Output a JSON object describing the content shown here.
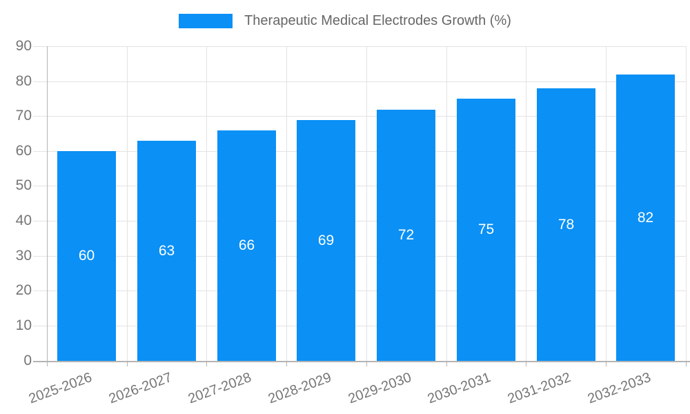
{
  "chart_data": {
    "type": "bar",
    "title": "Therapeutic Medical Electrodes Growth (%)",
    "categories": [
      "2025-2026",
      "2026-2027",
      "2027-2028",
      "2028-2029",
      "2029-2030",
      "2030-2031",
      "2031-2032",
      "2032-2033"
    ],
    "series": [
      {
        "name": "Therapeutic Medical Electrodes Growth (%)",
        "values": [
          60,
          63,
          66,
          69,
          72,
          75,
          78,
          82
        ]
      }
    ],
    "value_labels": [
      "60",
      "63",
      "66",
      "69",
      "72",
      "75",
      "78",
      "82"
    ],
    "yticks": [
      0,
      10,
      20,
      30,
      40,
      50,
      60,
      70,
      80,
      90
    ],
    "ylim": [
      0,
      90
    ],
    "xlabel": "",
    "ylabel": "",
    "grid": true,
    "legend_position": "top",
    "colors": {
      "bar": "#0b90f5",
      "grid_line": "#e3e3e3",
      "axis_line": "#b3b3b3",
      "tick_label": "#757575",
      "title": "#666666",
      "value_label": "#ffffff",
      "background": "#ffffff"
    }
  }
}
